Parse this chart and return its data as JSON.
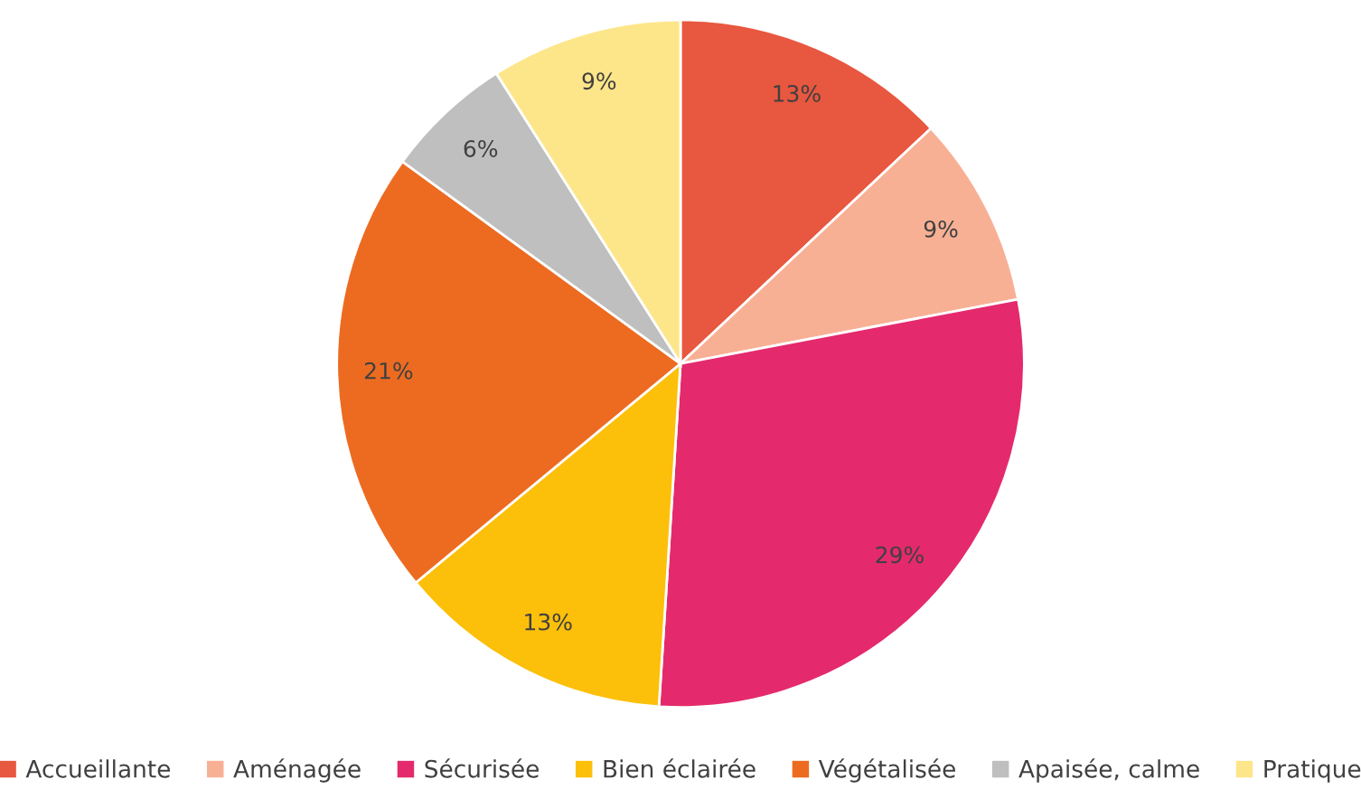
{
  "chart_data": {
    "type": "pie",
    "categories": [
      "Accueillante",
      "Aménagée",
      "Sécurisée",
      "Bien éclairée",
      "Végétalisée",
      "Apaisée, calme",
      "Pratique"
    ],
    "values": [
      13,
      9,
      29,
      13,
      21,
      6,
      9
    ],
    "colors": [
      "#e8573f",
      "#f8b095",
      "#e42a6c",
      "#fcc00a",
      "#ec6b21",
      "#bfbfbf",
      "#fde68a"
    ],
    "value_labels": [
      "13%",
      "9%",
      "29%",
      "13%",
      "21%",
      "6%",
      "9%"
    ],
    "legend": "bottom"
  }
}
